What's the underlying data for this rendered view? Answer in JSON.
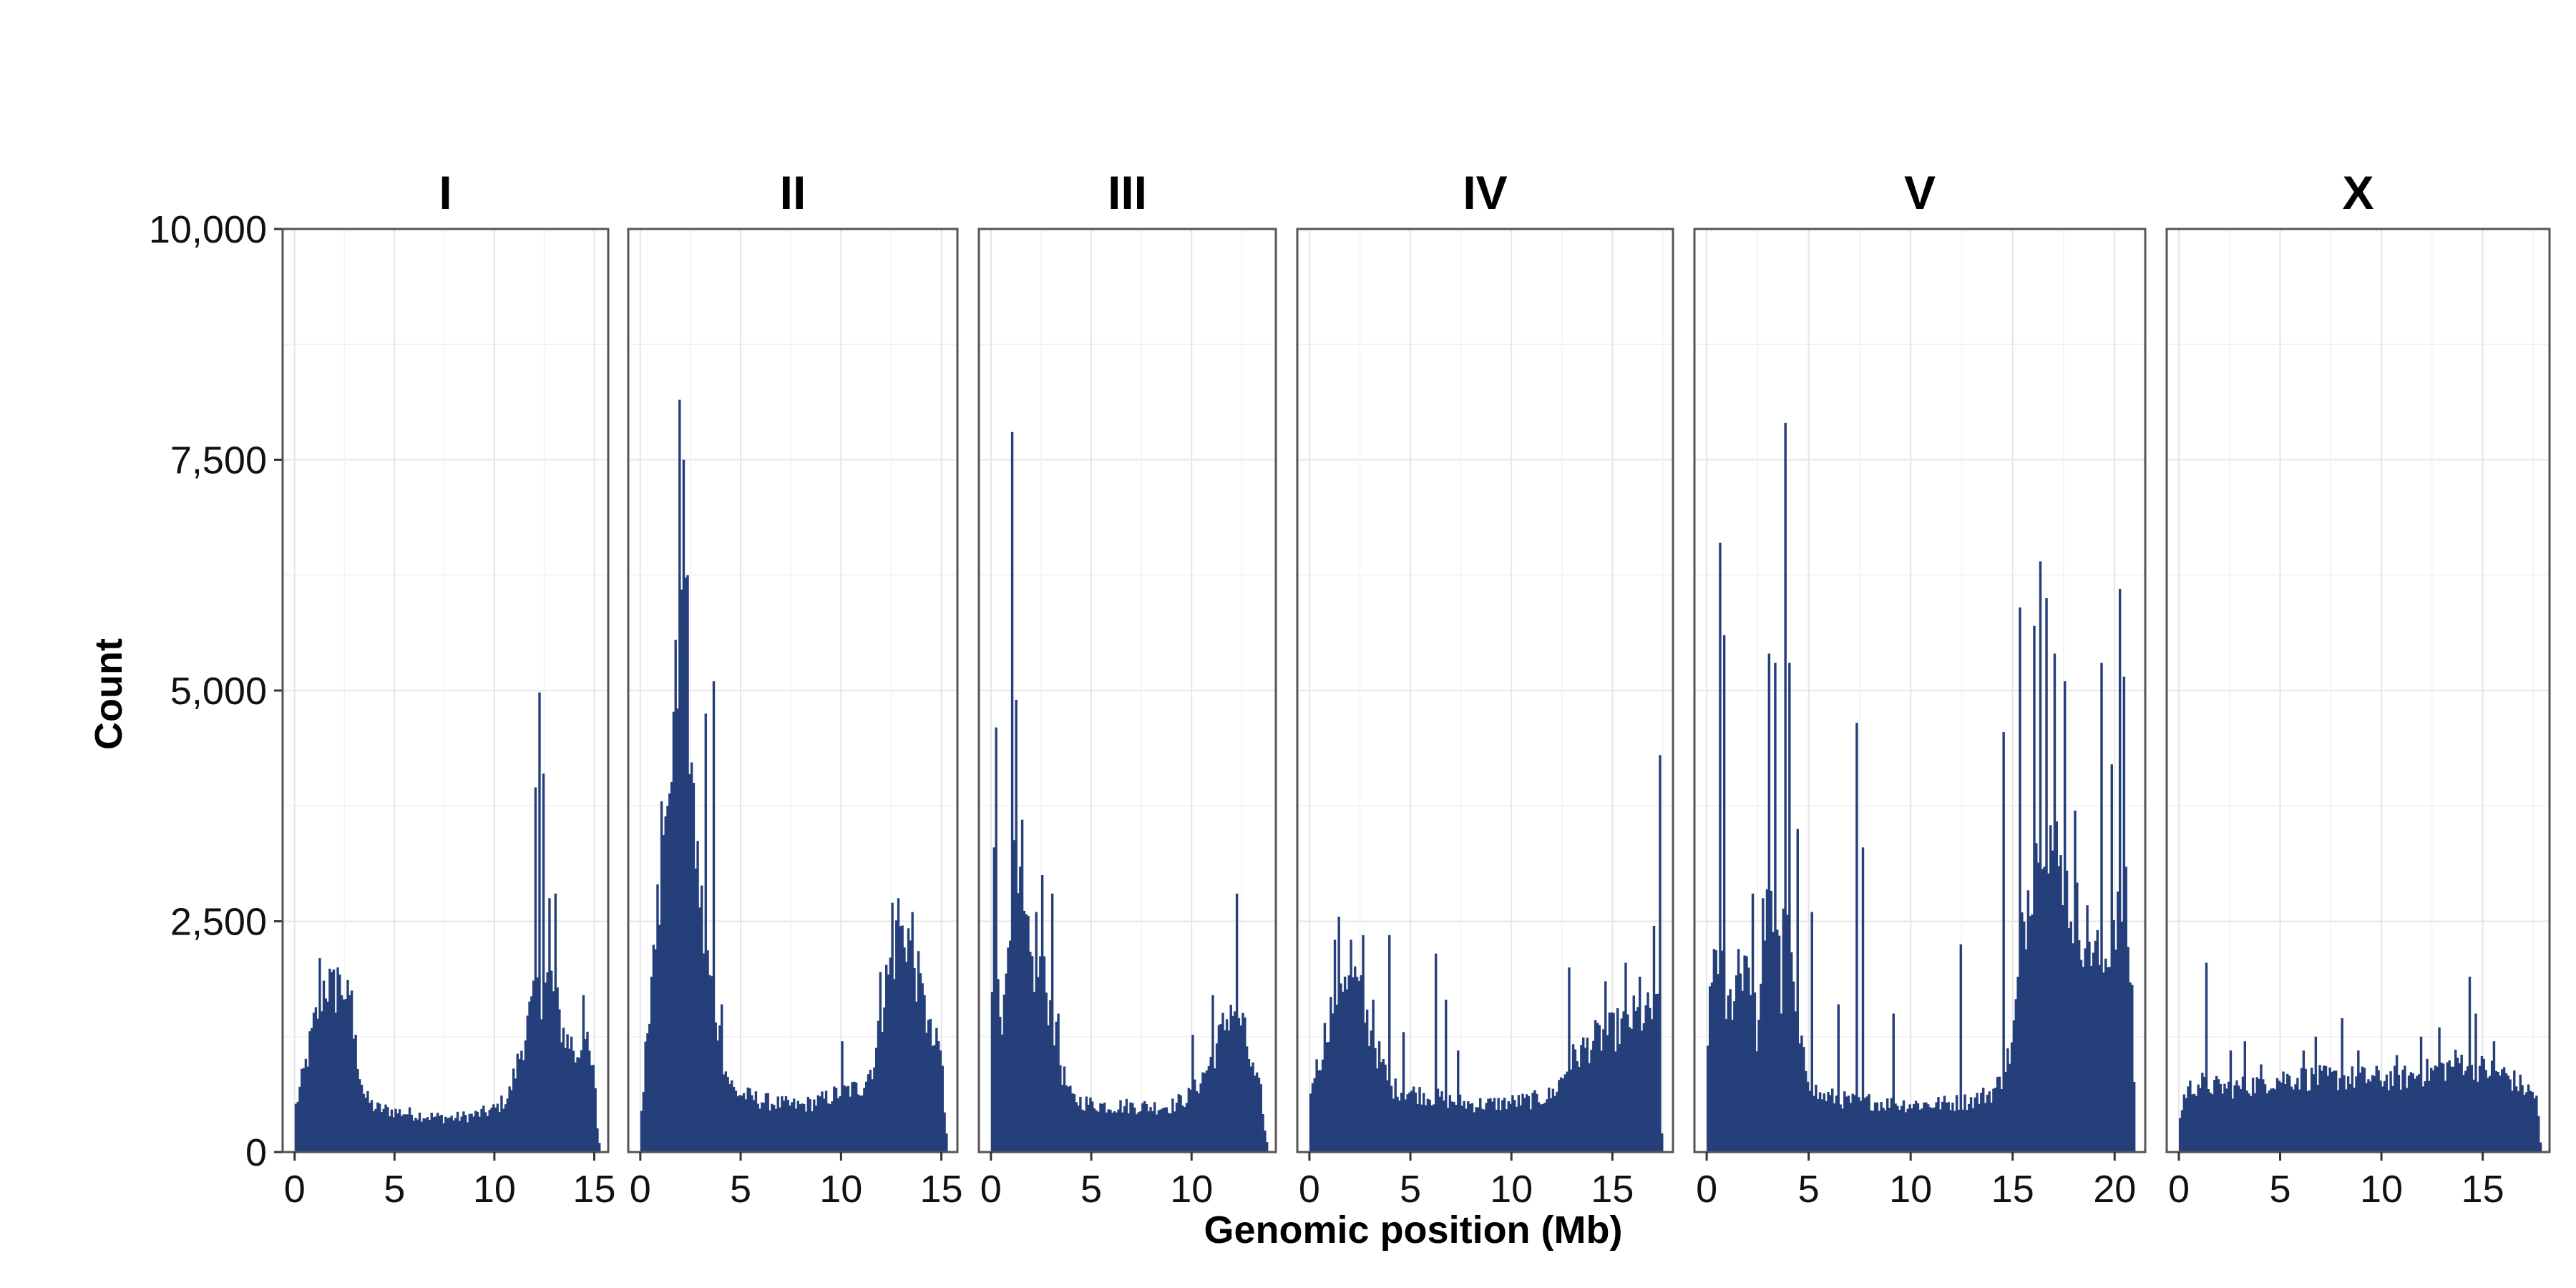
{
  "chart_data": {
    "type": "bar",
    "xlabel": "Genomic position (Mb)",
    "ylabel": "Count",
    "ylim": [
      0,
      10000
    ],
    "yticks": [
      0,
      2500,
      5000,
      7500,
      10000
    ],
    "ytick_labels": [
      "0",
      "2,500",
      "5,000",
      "7,500",
      "10,000"
    ],
    "grid": true,
    "bar_color": "#253f7a",
    "facets": [
      {
        "name": "I",
        "xlim": [
          -0.6,
          15.7
        ],
        "xticks": [
          0,
          5,
          10,
          15
        ],
        "bin_width_mb": 0.1,
        "profile": [
          [
            0,
            450
          ],
          [
            0.5,
            900
          ],
          [
            1,
            1400
          ],
          [
            1.5,
            1850
          ],
          [
            2,
            1750
          ],
          [
            2.5,
            1800
          ],
          [
            3,
            1200
          ],
          [
            3.5,
            600
          ],
          [
            4,
            480
          ],
          [
            5,
            440
          ],
          [
            6,
            410
          ],
          [
            7,
            380
          ],
          [
            8,
            370
          ],
          [
            9,
            400
          ],
          [
            10,
            460
          ],
          [
            10.7,
            600
          ],
          [
            11.2,
            1000
          ],
          [
            11.8,
            1500
          ],
          [
            12.2,
            1700
          ],
          [
            12.8,
            1900
          ],
          [
            13.3,
            1400
          ],
          [
            14,
            1000
          ],
          [
            14.5,
            1250
          ],
          [
            15,
            800
          ],
          [
            15.2,
            100
          ]
        ],
        "spikes": [
          [
            1.2,
            2100
          ],
          [
            1.8,
            1950
          ],
          [
            2.1,
            2000
          ],
          [
            2.8,
            1750
          ],
          [
            12.0,
            3950
          ],
          [
            12.2,
            4980
          ],
          [
            12.4,
            4100
          ],
          [
            12.7,
            2750
          ],
          [
            13.0,
            2800
          ],
          [
            13.8,
            1250
          ],
          [
            14.4,
            1700
          ]
        ]
      },
      {
        "name": "II",
        "xlim": [
          -0.6,
          15.8
        ],
        "xticks": [
          0,
          5,
          10,
          15
        ],
        "bin_width_mb": 0.1,
        "profile": [
          [
            0,
            300
          ],
          [
            0.3,
            1200
          ],
          [
            0.7,
            2500
          ],
          [
            1.2,
            3200
          ],
          [
            1.7,
            5000
          ],
          [
            2.2,
            5500
          ],
          [
            2.7,
            3500
          ],
          [
            3.2,
            2200
          ],
          [
            3.7,
            1600
          ],
          [
            4.2,
            900
          ],
          [
            4.7,
            650
          ],
          [
            6,
            560
          ],
          [
            7,
            520
          ],
          [
            8,
            500
          ],
          [
            9,
            560
          ],
          [
            10,
            650
          ],
          [
            11,
            700
          ],
          [
            11.7,
            1000
          ],
          [
            12.2,
            1800
          ],
          [
            12.8,
            2300
          ],
          [
            13.3,
            2400
          ],
          [
            14,
            1700
          ],
          [
            14.5,
            1200
          ],
          [
            15,
            1100
          ],
          [
            15.2,
            200
          ]
        ],
        "spikes": [
          [
            0.5,
            1900
          ],
          [
            0.8,
            2900
          ],
          [
            1.0,
            3800
          ],
          [
            1.3,
            3750
          ],
          [
            1.7,
            5550
          ],
          [
            1.9,
            8150
          ],
          [
            2.1,
            7500
          ],
          [
            2.3,
            6250
          ],
          [
            2.6,
            4000
          ],
          [
            3.2,
            4750
          ],
          [
            3.6,
            5100
          ],
          [
            4.0,
            1600
          ],
          [
            10.0,
            1200
          ],
          [
            11.9,
            1950
          ],
          [
            12.5,
            2700
          ],
          [
            12.8,
            2750
          ],
          [
            13.5,
            2600
          ],
          [
            14.1,
            1700
          ]
        ]
      },
      {
        "name": "III",
        "xlim": [
          -0.6,
          14.2
        ],
        "xticks": [
          0,
          5,
          10
        ],
        "bin_width_mb": 0.1,
        "profile": [
          [
            0,
            1500
          ],
          [
            0.3,
            2200
          ],
          [
            0.6,
            1300
          ],
          [
            1,
            3000
          ],
          [
            1.5,
            2600
          ],
          [
            2,
            2000
          ],
          [
            2.5,
            2000
          ],
          [
            3,
            1500
          ],
          [
            3.5,
            900
          ],
          [
            4,
            580
          ],
          [
            5,
            520
          ],
          [
            6,
            500
          ],
          [
            7,
            500
          ],
          [
            8,
            490
          ],
          [
            9,
            500
          ],
          [
            10,
            620
          ],
          [
            10.5,
            800
          ],
          [
            11,
            1000
          ],
          [
            11.5,
            1300
          ],
          [
            12,
            1600
          ],
          [
            12.5,
            1400
          ],
          [
            13,
            900
          ],
          [
            13.5,
            600
          ],
          [
            13.7,
            100
          ]
        ],
        "spikes": [
          [
            0.1,
            3300
          ],
          [
            0.2,
            4600
          ],
          [
            1.0,
            7800
          ],
          [
            1.2,
            4900
          ],
          [
            1.5,
            3600
          ],
          [
            2.2,
            2600
          ],
          [
            2.5,
            3000
          ],
          [
            3.0,
            2800
          ],
          [
            3.3,
            1500
          ],
          [
            10.0,
            1270
          ],
          [
            11.0,
            1700
          ],
          [
            12.2,
            2800
          ]
        ]
      },
      {
        "name": "IV",
        "xlim": [
          -0.6,
          18.0
        ],
        "xticks": [
          0,
          5,
          10,
          15
        ],
        "bin_width_mb": 0.1,
        "profile": [
          [
            0,
            650
          ],
          [
            0.5,
            1000
          ],
          [
            1,
            1500
          ],
          [
            1.5,
            1900
          ],
          [
            2,
            2000
          ],
          [
            2.5,
            1700
          ],
          [
            3,
            1300
          ],
          [
            3.5,
            1000
          ],
          [
            4,
            700
          ],
          [
            5,
            650
          ],
          [
            6,
            600
          ],
          [
            7,
            560
          ],
          [
            8,
            520
          ],
          [
            9,
            520
          ],
          [
            10,
            540
          ],
          [
            11,
            560
          ],
          [
            12,
            620
          ],
          [
            12.5,
            800
          ],
          [
            13,
            1000
          ],
          [
            14,
            1200
          ],
          [
            15,
            1300
          ],
          [
            16,
            1450
          ],
          [
            17,
            1500
          ],
          [
            17.3,
            1500
          ],
          [
            17.4,
            200
          ]
        ],
        "spikes": [
          [
            0.2,
            800
          ],
          [
            1.2,
            2300
          ],
          [
            1.4,
            2550
          ],
          [
            2.0,
            2300
          ],
          [
            2.6,
            2350
          ],
          [
            3.1,
            1650
          ],
          [
            3.9,
            2350
          ],
          [
            4.6,
            1300
          ],
          [
            6.2,
            2150
          ],
          [
            6.7,
            1650
          ],
          [
            7.3,
            1100
          ],
          [
            12.8,
            2000
          ],
          [
            14.6,
            1850
          ],
          [
            15.6,
            2050
          ],
          [
            16.3,
            1900
          ],
          [
            17.0,
            2450
          ],
          [
            17.3,
            4300
          ]
        ]
      },
      {
        "name": "V",
        "xlim": [
          -0.6,
          21.5
        ],
        "xticks": [
          0,
          5,
          10,
          15,
          20
        ],
        "bin_width_mb": 0.1,
        "profile": [
          [
            0,
            1200
          ],
          [
            0.5,
            2300
          ],
          [
            1,
            1500
          ],
          [
            1.5,
            1900
          ],
          [
            2,
            2200
          ],
          [
            2.5,
            1200
          ],
          [
            3,
            2600
          ],
          [
            3.5,
            2500
          ],
          [
            4,
            2200
          ],
          [
            4.5,
            1200
          ],
          [
            5,
            800
          ],
          [
            5.5,
            600
          ],
          [
            6,
            600
          ],
          [
            7,
            550
          ],
          [
            8,
            550
          ],
          [
            9,
            520
          ],
          [
            10,
            520
          ],
          [
            11,
            520
          ],
          [
            12,
            530
          ],
          [
            13,
            560
          ],
          [
            14,
            650
          ],
          [
            14.5,
            800
          ],
          [
            15,
            1200
          ],
          [
            15.5,
            2400
          ],
          [
            16,
            3200
          ],
          [
            16.5,
            3800
          ],
          [
            17,
            3300
          ],
          [
            17.5,
            2900
          ],
          [
            18,
            2600
          ],
          [
            18.5,
            2400
          ],
          [
            19,
            2200
          ],
          [
            19.5,
            2000
          ],
          [
            20,
            2600
          ],
          [
            20.5,
            2800
          ],
          [
            20.9,
            1500
          ],
          [
            21.0,
            200
          ]
        ],
        "spikes": [
          [
            0.3,
            2200
          ],
          [
            0.6,
            6600
          ],
          [
            0.8,
            5600
          ],
          [
            1.5,
            2200
          ],
          [
            2.2,
            2800
          ],
          [
            2.7,
            2750
          ],
          [
            3.0,
            5400
          ],
          [
            3.3,
            5300
          ],
          [
            3.6,
            1500
          ],
          [
            3.8,
            7900
          ],
          [
            4.0,
            5300
          ],
          [
            4.4,
            3500
          ],
          [
            5.1,
            2600
          ],
          [
            6.4,
            1600
          ],
          [
            7.3,
            4650
          ],
          [
            7.6,
            3300
          ],
          [
            9.1,
            1500
          ],
          [
            12.4,
            2250
          ],
          [
            14.5,
            4550
          ],
          [
            15.3,
            5900
          ],
          [
            16.0,
            5700
          ],
          [
            16.3,
            6400
          ],
          [
            16.6,
            6000
          ],
          [
            17.0,
            5400
          ],
          [
            17.5,
            5100
          ],
          [
            18.0,
            3700
          ],
          [
            19.3,
            5300
          ],
          [
            19.8,
            4200
          ],
          [
            20.2,
            6100
          ],
          [
            20.4,
            5150
          ]
        ]
      },
      {
        "name": "X",
        "xlim": [
          -0.6,
          18.3
        ],
        "xticks": [
          0,
          5,
          10,
          15
        ],
        "bin_width_mb": 0.1,
        "profile": [
          [
            0,
            300
          ],
          [
            0.3,
            650
          ],
          [
            1,
            750
          ],
          [
            2,
            700
          ],
          [
            3,
            700
          ],
          [
            4,
            750
          ],
          [
            5,
            800
          ],
          [
            6,
            800
          ],
          [
            7,
            800
          ],
          [
            8,
            800
          ],
          [
            9,
            800
          ],
          [
            10,
            800
          ],
          [
            11,
            800
          ],
          [
            12,
            850
          ],
          [
            13,
            900
          ],
          [
            14,
            1000
          ],
          [
            15,
            900
          ],
          [
            16,
            850
          ],
          [
            17,
            700
          ],
          [
            17.7,
            600
          ],
          [
            17.8,
            100
          ]
        ],
        "spikes": [
          [
            1.3,
            2050
          ],
          [
            2.5,
            1100
          ],
          [
            3.2,
            1200
          ],
          [
            4.0,
            950
          ],
          [
            6.1,
            1100
          ],
          [
            6.7,
            1250
          ],
          [
            8.0,
            1450
          ],
          [
            8.8,
            1100
          ],
          [
            10.7,
            1050
          ],
          [
            11.9,
            1250
          ],
          [
            12.8,
            1350
          ],
          [
            14.3,
            1900
          ],
          [
            14.6,
            1500
          ],
          [
            15.5,
            1200
          ]
        ]
      }
    ]
  }
}
